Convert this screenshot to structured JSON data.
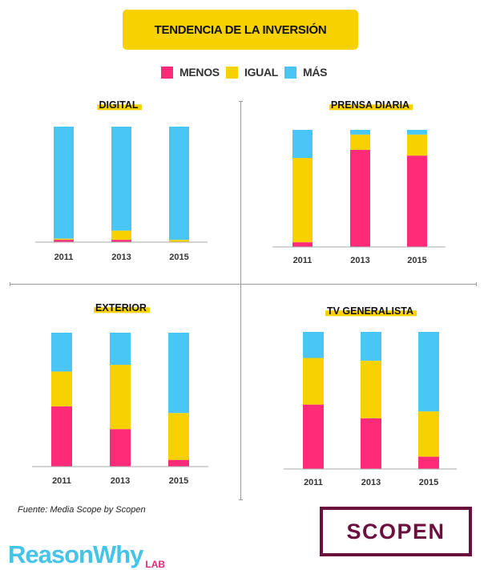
{
  "header": {
    "title": "TENDENCIA DE LA INVERSIÓN"
  },
  "legend": {
    "items": [
      {
        "label": "MENOS",
        "color": "#ff2b78"
      },
      {
        "label": "IGUAL",
        "color": "#f7d100"
      },
      {
        "label": "MÁS",
        "color": "#49c6f5"
      }
    ]
  },
  "chart_data": [
    {
      "type": "bar",
      "stacked": true,
      "title": "DIGITAL",
      "categories": [
        "2011",
        "2013",
        "2015"
      ],
      "series": [
        {
          "name": "MENOS",
          "values": [
            2,
            2,
            0
          ]
        },
        {
          "name": "IGUAL",
          "values": [
            1,
            8,
            2
          ]
        },
        {
          "name": "MÁS",
          "values": [
            97,
            90,
            98
          ]
        }
      ],
      "ylim": [
        0,
        100
      ]
    },
    {
      "type": "bar",
      "stacked": true,
      "title": "PRENSA DIARIA",
      "categories": [
        "2011",
        "2013",
        "2015"
      ],
      "series": [
        {
          "name": "MENOS",
          "values": [
            4,
            83,
            78
          ]
        },
        {
          "name": "IGUAL",
          "values": [
            72,
            13,
            18
          ]
        },
        {
          "name": "MÁS",
          "values": [
            24,
            4,
            4
          ]
        }
      ],
      "ylim": [
        0,
        100
      ]
    },
    {
      "type": "bar",
      "stacked": true,
      "title": "EXTERIOR",
      "categories": [
        "2011",
        "2013",
        "2015"
      ],
      "series": [
        {
          "name": "MENOS",
          "values": [
            45,
            28,
            5
          ]
        },
        {
          "name": "IGUAL",
          "values": [
            26,
            48,
            35
          ]
        },
        {
          "name": "MÁS",
          "values": [
            29,
            24,
            60
          ]
        }
      ],
      "ylim": [
        0,
        100
      ]
    },
    {
      "type": "bar",
      "stacked": true,
      "title": "TV GENERALISTA",
      "categories": [
        "2011",
        "2013",
        "2015"
      ],
      "series": [
        {
          "name": "MENOS",
          "values": [
            47,
            37,
            9
          ]
        },
        {
          "name": "IGUAL",
          "values": [
            34,
            42,
            33
          ]
        },
        {
          "name": "MÁS",
          "values": [
            19,
            21,
            58
          ]
        }
      ],
      "ylim": [
        0,
        100
      ]
    }
  ],
  "footer": {
    "source": "Fuente: Media Scope by Scopen",
    "logo_main": "ReasonWhy",
    "logo_sub": "LAB",
    "partner_logo": "SCOPEN"
  }
}
